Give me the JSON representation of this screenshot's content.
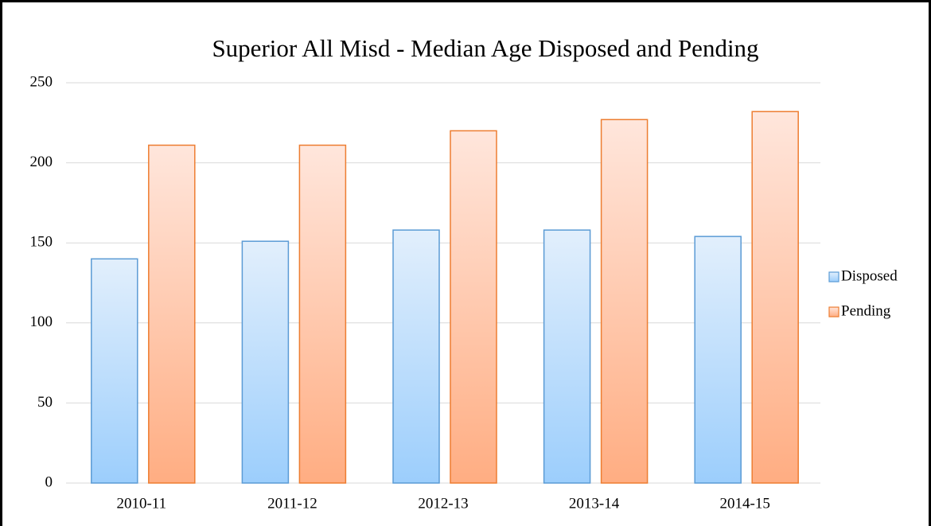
{
  "chart_data": {
    "type": "bar",
    "title": "Superior All Misd - Median Age Disposed and Pending",
    "categories": [
      "2010-11",
      "2011-12",
      "2012-13",
      "2013-14",
      "2014-15"
    ],
    "series": [
      {
        "name": "Disposed",
        "color": "#5b9bd5",
        "values": [
          140,
          151,
          158,
          158,
          154
        ]
      },
      {
        "name": "Pending",
        "color": "#ed7d31",
        "values": [
          211,
          211,
          220,
          227,
          232
        ]
      }
    ],
    "ylim": [
      0,
      250
    ],
    "yticks": [
      0,
      50,
      100,
      150,
      200,
      250
    ],
    "grid": true,
    "legend": "right"
  }
}
